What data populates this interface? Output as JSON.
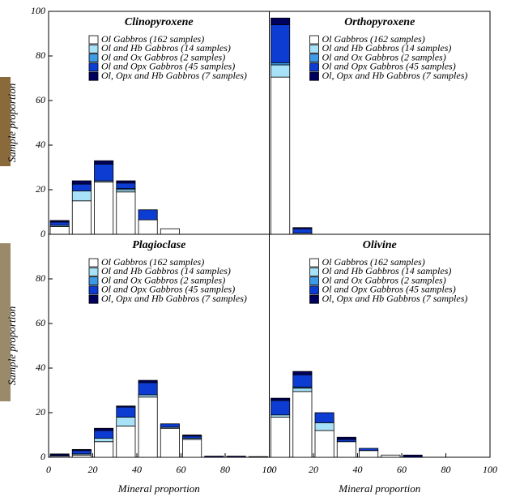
{
  "chart_data": [
    {
      "type": "histogram",
      "title": "Clinopyroxene",
      "ylabel": "Sample proportion",
      "bins": [
        0,
        10,
        20,
        30,
        40,
        50,
        60,
        70,
        80,
        90,
        100
      ],
      "xlim": [
        0,
        100
      ],
      "ylim": [
        0,
        100
      ],
      "yticks": [
        0,
        20,
        40,
        60,
        80,
        100
      ],
      "series": [
        {
          "name": "Ol Gabbros (162 samples)",
          "color": "#ffffff",
          "values": [
            3.5,
            15,
            23.5,
            19,
            6.5,
            2.5,
            0,
            0,
            0,
            0
          ]
        },
        {
          "name": "Ol and Hb Gabbros (14 samples)",
          "color": "#a8e2f8",
          "values": [
            0.5,
            4.5,
            0.5,
            1,
            0,
            0,
            0,
            0,
            0,
            0
          ]
        },
        {
          "name": "Ol and Ox Gabbros (2 samples)",
          "color": "#3c9ae6",
          "values": [
            0,
            0,
            0,
            0.5,
            0,
            0,
            0,
            0,
            0,
            0
          ]
        },
        {
          "name": "Ol and Opx Gabbros (45 samples)",
          "color": "#0c3cd2",
          "values": [
            1.5,
            3,
            7.5,
            2.5,
            4.5,
            0,
            0,
            0,
            0,
            0
          ]
        },
        {
          "name": "Ol, Opx and Hb Gabbros (7 samples)",
          "color": "#00005e",
          "values": [
            0.7,
            1.5,
            1.5,
            1,
            0,
            0,
            0,
            0,
            0,
            0
          ]
        }
      ]
    },
    {
      "type": "histogram",
      "title": "Orthopyroxene",
      "bins": [
        0,
        10,
        20,
        30,
        40,
        50,
        60,
        70,
        80,
        90,
        100
      ],
      "xlim": [
        0,
        100
      ],
      "ylim": [
        0,
        100
      ],
      "series": [
        {
          "name": "Ol Gabbros (162 samples)",
          "color": "#ffffff",
          "values": [
            70.5,
            0.5,
            0,
            0,
            0,
            0,
            0,
            0,
            0,
            0
          ]
        },
        {
          "name": "Ol and Hb Gabbros (14 samples)",
          "color": "#a8e2f8",
          "values": [
            5.5,
            0,
            0,
            0,
            0,
            0,
            0,
            0,
            0,
            0
          ]
        },
        {
          "name": "Ol and Ox Gabbros (2 samples)",
          "color": "#3c9ae6",
          "values": [
            1,
            0,
            0,
            0,
            0,
            0,
            0,
            0,
            0,
            0
          ]
        },
        {
          "name": "Ol and Opx Gabbros (45 samples)",
          "color": "#0c3cd2",
          "values": [
            17,
            2,
            0,
            0,
            0,
            0,
            0,
            0,
            0,
            0
          ]
        },
        {
          "name": "Ol, Opx and Hb Gabbros (7 samples)",
          "color": "#00005e",
          "values": [
            3,
            0.5,
            0,
            0,
            0,
            0,
            0,
            0,
            0,
            0
          ]
        }
      ]
    },
    {
      "type": "histogram",
      "title": "Plagioclase",
      "ylabel": "Sample proportion",
      "xlabel": "Mineral proportion",
      "bins": [
        0,
        10,
        20,
        30,
        40,
        50,
        60,
        70,
        80,
        90,
        100
      ],
      "xlim": [
        0,
        100
      ],
      "ylim": [
        0,
        100
      ],
      "xticks": [
        0,
        20,
        40,
        60,
        80,
        100
      ],
      "yticks": [
        0,
        20,
        40,
        60,
        80
      ],
      "series": [
        {
          "name": "Ol Gabbros (162 samples)",
          "color": "#ffffff",
          "values": [
            0.5,
            1,
            7,
            14,
            27,
            13,
            8,
            0,
            0,
            0
          ]
        },
        {
          "name": "Ol and Hb Gabbros (14 samples)",
          "color": "#a8e2f8",
          "values": [
            0,
            0.5,
            1.5,
            4,
            1,
            0.5,
            0.5,
            0,
            0,
            0
          ]
        },
        {
          "name": "Ol and Ox Gabbros (2 samples)",
          "color": "#3c9ae6",
          "values": [
            0,
            0,
            0,
            0,
            0,
            0,
            0,
            0,
            0,
            0
          ]
        },
        {
          "name": "Ol and Opx Gabbros (45 samples)",
          "color": "#0c3cd2",
          "values": [
            0.5,
            1.5,
            3.5,
            4.5,
            5.5,
            1.5,
            1,
            0,
            0,
            0
          ]
        },
        {
          "name": "Ol, Opx and Hb Gabbros (7 samples)",
          "color": "#00005e",
          "values": [
            0.5,
            0.5,
            1,
            0.5,
            1,
            0,
            0.5,
            0.5,
            0.5,
            0.3
          ]
        }
      ]
    },
    {
      "type": "histogram",
      "title": "Olivine",
      "xlabel": "Mineral proportion",
      "bins": [
        0,
        10,
        20,
        30,
        40,
        50,
        60,
        70,
        80,
        90,
        100
      ],
      "xlim": [
        0,
        100
      ],
      "ylim": [
        0,
        100
      ],
      "xticks": [
        0,
        20,
        40,
        60,
        80,
        100
      ],
      "series": [
        {
          "name": "Ol Gabbros (162 samples)",
          "color": "#ffffff",
          "values": [
            18,
            29.5,
            12,
            7,
            3,
            1,
            0,
            0,
            0,
            0
          ]
        },
        {
          "name": "Ol and Hb Gabbros (14 samples)",
          "color": "#a8e2f8",
          "values": [
            1,
            1.5,
            3.5,
            0,
            0,
            0,
            0,
            0,
            0,
            0
          ]
        },
        {
          "name": "Ol and Ox Gabbros (2 samples)",
          "color": "#3c9ae6",
          "values": [
            0,
            0.5,
            0,
            0,
            0,
            0,
            0,
            0,
            0,
            0
          ]
        },
        {
          "name": "Ol and Opx Gabbros (45 samples)",
          "color": "#0c3cd2",
          "values": [
            6.5,
            5.5,
            4.5,
            1,
            1,
            0,
            0,
            0,
            0,
            0
          ]
        },
        {
          "name": "Ol, Opx and Hb Gabbros (7 samples)",
          "color": "#00005e",
          "values": [
            1,
            1.5,
            0,
            1,
            0,
            0,
            1,
            0,
            0,
            0
          ]
        }
      ]
    }
  ]
}
